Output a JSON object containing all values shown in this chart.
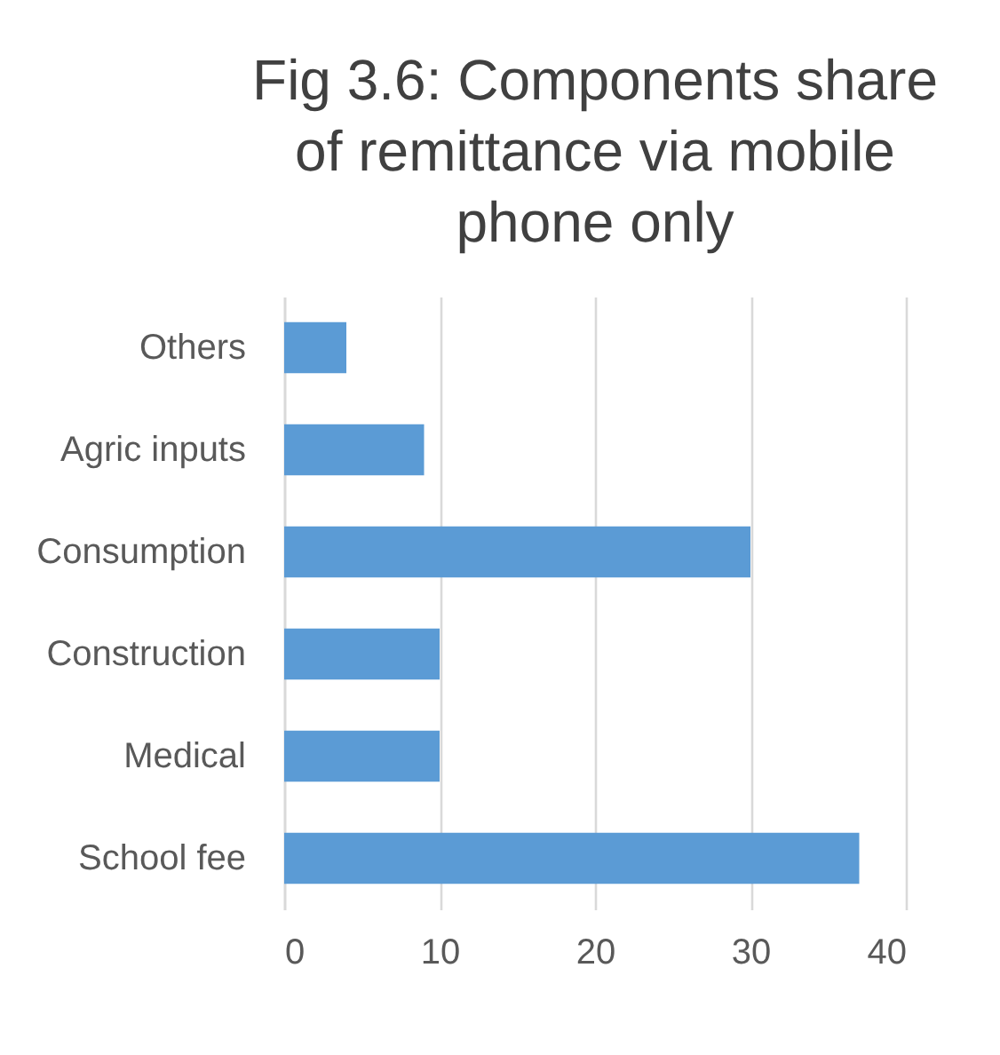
{
  "chart_data": {
    "type": "bar",
    "orientation": "horizontal",
    "title": "Fig 3.6: Components share of remittance via mobile phone only",
    "categories": [
      "Others",
      "Agric inputs",
      "Consumption",
      "Construction",
      "Medical",
      "School fee"
    ],
    "values": [
      4,
      9,
      30,
      10,
      10,
      37
    ],
    "color": "#5b9bd5",
    "xlim": [
      0,
      40
    ],
    "xticks": [
      0,
      10,
      20,
      30,
      40
    ],
    "grid": "x"
  }
}
